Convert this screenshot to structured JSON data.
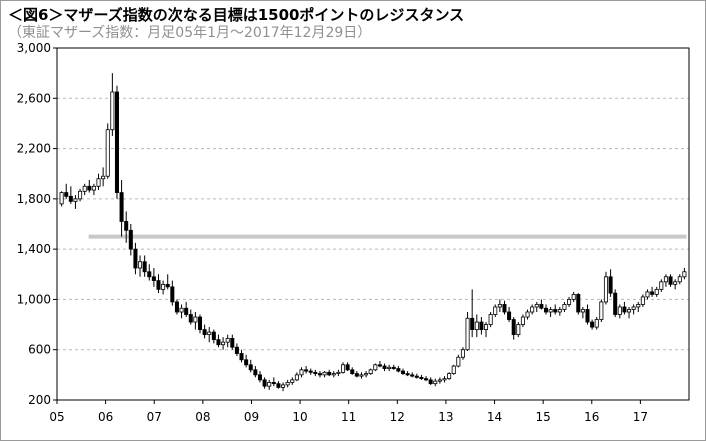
{
  "chart_data": {
    "type": "candlestick",
    "title": "＜図6＞マザーズ指数の次なる目標は1500ポイントのレジスタンス",
    "subtitle": "（東証マザーズ指数：月足05年1月～2017年12月29日）",
    "xlabel": "",
    "ylabel": "",
    "ylim": [
      200,
      3000
    ],
    "yticks": [
      "200",
      "600",
      "1,000",
      "1,400",
      "1,800",
      "2,200",
      "2,600",
      "3,000"
    ],
    "ytick_values": [
      200,
      600,
      1000,
      1400,
      1800,
      2200,
      2600,
      3000
    ],
    "xticks": [
      "05",
      "06",
      "07",
      "08",
      "09",
      "10",
      "11",
      "12",
      "13",
      "14",
      "15",
      "16",
      "17"
    ],
    "xlim": [
      2005.0,
      2018.0
    ],
    "grid": true,
    "resistance_line": {
      "value": 1500,
      "x_start": 2005.65,
      "x_end": 2017.95,
      "color": "#c8c8c8"
    },
    "series": [
      {
        "values": [
          [
            1760,
            1860,
            1740,
            1850
          ],
          [
            1850,
            1920,
            1800,
            1820
          ],
          [
            1820,
            1900,
            1760,
            1780
          ],
          [
            1780,
            1830,
            1720,
            1800
          ],
          [
            1800,
            1880,
            1780,
            1860
          ],
          [
            1860,
            1920,
            1830,
            1900
          ],
          [
            1900,
            1950,
            1850,
            1870
          ],
          [
            1870,
            1920,
            1830,
            1900
          ],
          [
            1900,
            2000,
            1870,
            1960
          ],
          [
            1960,
            2050,
            1900,
            1980
          ],
          [
            1980,
            2400,
            1960,
            2350
          ],
          [
            2350,
            2800,
            2300,
            2650
          ],
          [
            2650,
            2700,
            1800,
            1850
          ],
          [
            1850,
            1950,
            1500,
            1620
          ],
          [
            1620,
            1700,
            1450,
            1550
          ],
          [
            1550,
            1600,
            1350,
            1400
          ],
          [
            1400,
            1450,
            1200,
            1250
          ],
          [
            1250,
            1350,
            1180,
            1300
          ],
          [
            1300,
            1350,
            1180,
            1220
          ],
          [
            1220,
            1280,
            1150,
            1180
          ],
          [
            1180,
            1250,
            1100,
            1150
          ],
          [
            1150,
            1200,
            1050,
            1080
          ],
          [
            1080,
            1150,
            1040,
            1120
          ],
          [
            1120,
            1200,
            1080,
            1100
          ],
          [
            1100,
            1150,
            950,
            980
          ],
          [
            980,
            1000,
            880,
            900
          ],
          [
            900,
            960,
            850,
            930
          ],
          [
            930,
            980,
            860,
            880
          ],
          [
            880,
            920,
            800,
            820
          ],
          [
            820,
            900,
            760,
            860
          ],
          [
            860,
            880,
            730,
            760
          ],
          [
            760,
            800,
            690,
            720
          ],
          [
            720,
            780,
            660,
            740
          ],
          [
            740,
            760,
            650,
            680
          ],
          [
            680,
            720,
            620,
            640
          ],
          [
            640,
            700,
            600,
            660
          ],
          [
            660,
            720,
            620,
            690
          ],
          [
            690,
            720,
            600,
            620
          ],
          [
            620,
            650,
            550,
            570
          ],
          [
            570,
            600,
            500,
            520
          ],
          [
            520,
            560,
            460,
            480
          ],
          [
            480,
            520,
            420,
            440
          ],
          [
            440,
            470,
            380,
            400
          ],
          [
            400,
            430,
            340,
            360
          ],
          [
            360,
            380,
            290,
            310
          ],
          [
            310,
            360,
            280,
            340
          ],
          [
            340,
            380,
            310,
            330
          ],
          [
            330,
            350,
            290,
            300
          ],
          [
            300,
            340,
            270,
            320
          ],
          [
            320,
            360,
            300,
            340
          ],
          [
            340,
            380,
            320,
            360
          ],
          [
            360,
            420,
            350,
            400
          ],
          [
            400,
            460,
            380,
            440
          ],
          [
            440,
            470,
            410,
            430
          ],
          [
            430,
            450,
            400,
            420
          ],
          [
            420,
            440,
            390,
            410
          ],
          [
            410,
            430,
            380,
            400
          ],
          [
            400,
            430,
            380,
            420
          ],
          [
            420,
            440,
            390,
            400
          ],
          [
            400,
            430,
            380,
            410
          ],
          [
            410,
            440,
            390,
            420
          ],
          [
            420,
            500,
            410,
            480
          ],
          [
            480,
            500,
            430,
            440
          ],
          [
            440,
            460,
            400,
            410
          ],
          [
            410,
            430,
            380,
            390
          ],
          [
            390,
            420,
            370,
            400
          ],
          [
            400,
            430,
            380,
            410
          ],
          [
            410,
            450,
            400,
            440
          ],
          [
            440,
            490,
            430,
            480
          ],
          [
            480,
            510,
            460,
            470
          ],
          [
            470,
            490,
            430,
            450
          ],
          [
            450,
            480,
            430,
            460
          ],
          [
            460,
            480,
            440,
            450
          ],
          [
            450,
            470,
            420,
            430
          ],
          [
            430,
            450,
            400,
            410
          ],
          [
            410,
            430,
            390,
            400
          ],
          [
            400,
            420,
            380,
            390
          ],
          [
            390,
            410,
            370,
            380
          ],
          [
            380,
            400,
            360,
            370
          ],
          [
            370,
            390,
            350,
            360
          ],
          [
            360,
            380,
            320,
            330
          ],
          [
            330,
            370,
            310,
            350
          ],
          [
            350,
            380,
            330,
            360
          ],
          [
            360,
            390,
            340,
            370
          ],
          [
            370,
            420,
            360,
            410
          ],
          [
            410,
            480,
            400,
            470
          ],
          [
            470,
            560,
            460,
            540
          ],
          [
            540,
            620,
            520,
            600
          ],
          [
            600,
            900,
            590,
            850
          ],
          [
            850,
            1080,
            700,
            760
          ],
          [
            760,
            880,
            700,
            820
          ],
          [
            820,
            860,
            720,
            760
          ],
          [
            760,
            820,
            700,
            800
          ],
          [
            800,
            900,
            780,
            880
          ],
          [
            880,
            960,
            860,
            940
          ],
          [
            940,
            1000,
            900,
            960
          ],
          [
            960,
            990,
            880,
            900
          ],
          [
            900,
            940,
            820,
            840
          ],
          [
            840,
            860,
            680,
            720
          ],
          [
            720,
            820,
            700,
            800
          ],
          [
            800,
            880,
            780,
            860
          ],
          [
            860,
            920,
            840,
            900
          ],
          [
            900,
            960,
            880,
            940
          ],
          [
            940,
            980,
            900,
            960
          ],
          [
            960,
            1000,
            920,
            930
          ],
          [
            930,
            960,
            880,
            900
          ],
          [
            900,
            940,
            860,
            920
          ],
          [
            920,
            960,
            880,
            900
          ],
          [
            900,
            940,
            870,
            920
          ],
          [
            920,
            980,
            900,
            960
          ],
          [
            960,
            1020,
            940,
            1000
          ],
          [
            1000,
            1060,
            980,
            1040
          ],
          [
            1040,
            1050,
            880,
            900
          ],
          [
            900,
            940,
            850,
            920
          ],
          [
            920,
            960,
            800,
            820
          ],
          [
            820,
            840,
            760,
            780
          ],
          [
            780,
            860,
            760,
            840
          ],
          [
            840,
            1000,
            820,
            980
          ],
          [
            980,
            1220,
            960,
            1180
          ],
          [
            1180,
            1240,
            1020,
            1050
          ],
          [
            1050,
            1080,
            860,
            880
          ],
          [
            880,
            960,
            850,
            940
          ],
          [
            940,
            980,
            880,
            900
          ],
          [
            900,
            940,
            850,
            920
          ],
          [
            920,
            960,
            880,
            940
          ],
          [
            940,
            980,
            900,
            960
          ],
          [
            960,
            1040,
            940,
            1020
          ],
          [
            1020,
            1080,
            1000,
            1060
          ],
          [
            1060,
            1100,
            1020,
            1040
          ],
          [
            1040,
            1100,
            1020,
            1080
          ],
          [
            1080,
            1160,
            1060,
            1140
          ],
          [
            1140,
            1200,
            1100,
            1180
          ],
          [
            1180,
            1200,
            1100,
            1120
          ],
          [
            1120,
            1160,
            1080,
            1140
          ],
          [
            1140,
            1200,
            1120,
            1180
          ],
          [
            1180,
            1250,
            1160,
            1220
          ]
        ]
      }
    ]
  }
}
